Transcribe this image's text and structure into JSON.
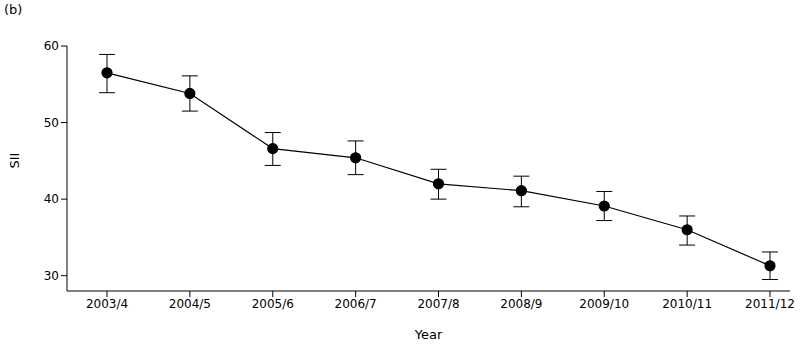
{
  "chart_data": {
    "type": "line",
    "title": "(b)",
    "x_label": "Year",
    "y_label": "SII",
    "categories": [
      "2003/4",
      "2004/5",
      "2005/6",
      "2006/7",
      "2007/8",
      "2008/9",
      "2009/10",
      "2010/11",
      "2011/12"
    ],
    "values": [
      56.5,
      53.8,
      46.6,
      45.4,
      42.0,
      41.1,
      39.1,
      36.0,
      31.3
    ],
    "ci_low": [
      53.9,
      51.5,
      44.4,
      43.2,
      40.0,
      39.0,
      37.2,
      34.0,
      29.5
    ],
    "ci_high": [
      58.9,
      56.1,
      48.7,
      47.6,
      43.9,
      43.0,
      41.0,
      37.8,
      33.1
    ],
    "color": "#000000",
    "marker": "circle",
    "ylim": [
      28,
      60
    ],
    "yticks": [
      30,
      40,
      50,
      60
    ],
    "grid": false
  }
}
